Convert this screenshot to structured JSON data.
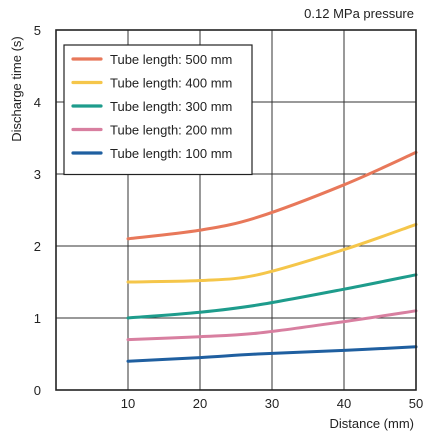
{
  "chart_data": {
    "type": "line",
    "title": "",
    "subtitle": "0.12 MPa pressure",
    "xlabel": "Distance (mm)",
    "ylabel": "Discharge time (s)",
    "xlim": [
      0,
      50
    ],
    "ylim": [
      0,
      5
    ],
    "xticks": [
      10,
      20,
      30,
      40,
      50
    ],
    "yticks": [
      0,
      1,
      2,
      3,
      4,
      5
    ],
    "grid": true,
    "legend_position": "top-left",
    "x": [
      10,
      20,
      28,
      40,
      50
    ],
    "series": [
      {
        "name": "Tube length: 500 mm",
        "color": "#e8785a",
        "values": [
          2.1,
          2.22,
          2.4,
          2.85,
          3.3
        ]
      },
      {
        "name": "Tube length: 400 mm",
        "color": "#f5c64a",
        "values": [
          1.5,
          1.52,
          1.6,
          1.95,
          2.3
        ]
      },
      {
        "name": "Tube length: 300 mm",
        "color": "#1e9c8c",
        "values": [
          1.0,
          1.08,
          1.18,
          1.4,
          1.6
        ]
      },
      {
        "name": "Tube length: 200 mm",
        "color": "#d87fa0",
        "values": [
          0.7,
          0.74,
          0.79,
          0.95,
          1.1
        ]
      },
      {
        "name": "Tube length: 100 mm",
        "color": "#1f5fa0",
        "values": [
          0.4,
          0.45,
          0.5,
          0.55,
          0.6
        ]
      }
    ]
  }
}
